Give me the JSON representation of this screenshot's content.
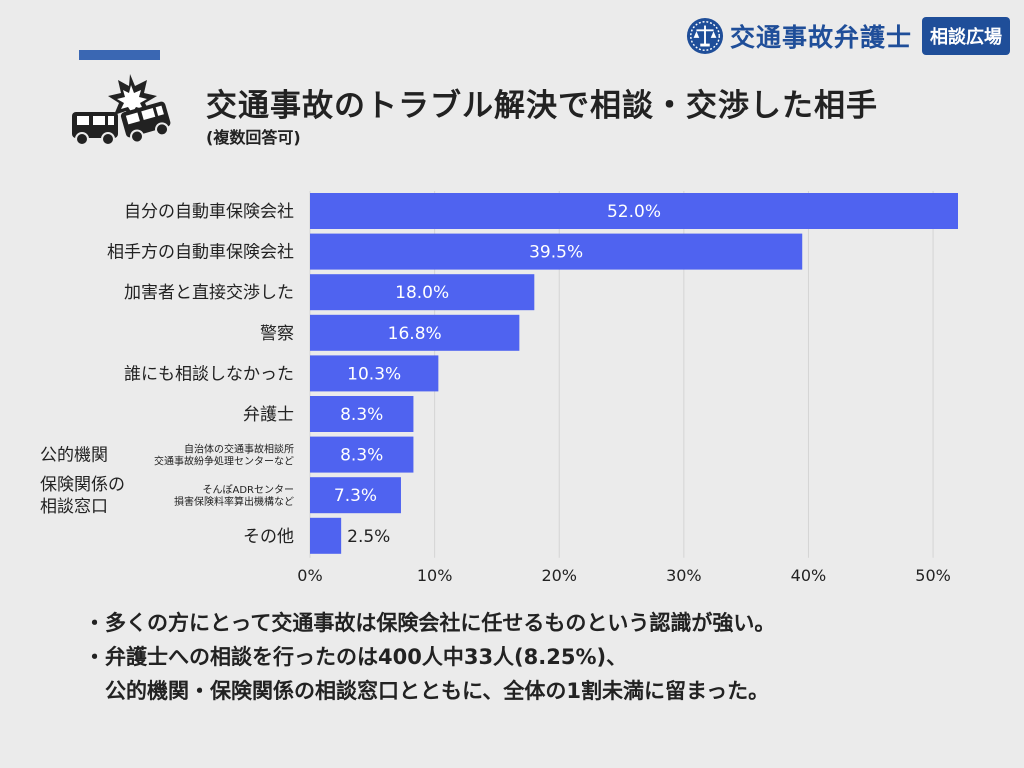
{
  "brand": {
    "name": "交通事故弁護士",
    "badge": "相談広場",
    "color": "#1f4e99"
  },
  "header": {
    "accent_color": "#3a67b3",
    "icon": "car-crash-icon"
  },
  "chart_data": {
    "type": "bar",
    "orientation": "horizontal",
    "title": "交通事故のトラブル解決で相談・交渉した相手",
    "subtitle": "(複数回答可)",
    "categories": [
      {
        "label": "自分の自動車保険会社",
        "note": []
      },
      {
        "label": "相手方の自動車保険会社",
        "note": []
      },
      {
        "label": "加害者と直接交渉した",
        "note": []
      },
      {
        "label": "警察",
        "note": []
      },
      {
        "label": "誰にも相談しなかった",
        "note": []
      },
      {
        "label": "弁護士",
        "note": []
      },
      {
        "label": "公的機関",
        "note": [
          "自治体の交通事故相談所",
          "交通事故紛争処理センターなど"
        ]
      },
      {
        "label": "保険関係の\n相談窓口",
        "note": [
          "そんぽADRセンター",
          "損害保険料率算出機構など"
        ]
      },
      {
        "label": "その他",
        "note": []
      }
    ],
    "values": [
      52.0,
      39.5,
      18.0,
      16.8,
      10.3,
      8.3,
      8.3,
      7.3,
      2.5
    ],
    "value_labels": [
      "52.0%",
      "39.5%",
      "18.0%",
      "16.8%",
      "10.3%",
      "8.3%",
      "8.3%",
      "7.3%",
      "2.5%"
    ],
    "xlim": [
      0,
      52
    ],
    "xticks": [
      0,
      10,
      20,
      30,
      40,
      50
    ],
    "xtick_labels": [
      "0%",
      "10%",
      "20%",
      "30%",
      "40%",
      "50%"
    ],
    "grid": true,
    "bar_color": "#4f63f0",
    "grid_color": "#d4d4d4"
  },
  "notes": [
    {
      "text": "・多くの方にとって交通事故は保険会社に任せるものという認識が強い。"
    },
    {
      "text": "・弁護士への相談を行ったのは400人中33人(8.25%)、"
    },
    {
      "text": "公的機関・保険関係の相談窓口とともに、全体の1割未満に留まった。"
    }
  ]
}
